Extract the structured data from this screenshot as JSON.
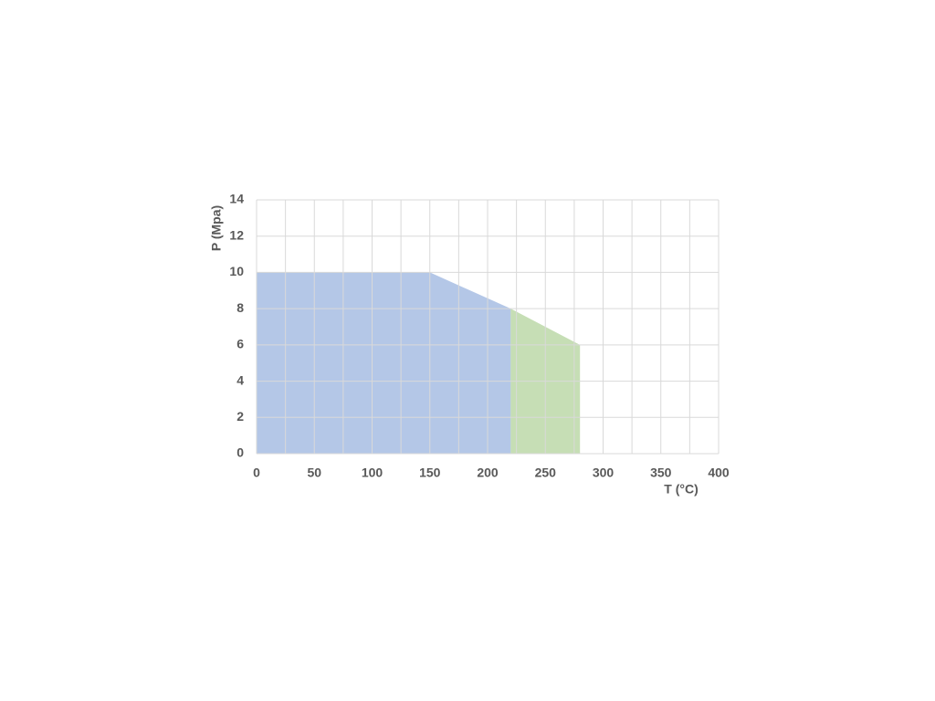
{
  "chart_data": {
    "type": "area",
    "x_label": "T (°C)",
    "y_label": "P (Mpa)",
    "series": [
      {
        "color": "#4472c4",
        "x": [
          0,
          150,
          220
        ],
        "values": [
          10,
          10,
          8
        ]
      },
      {
        "color": "#70ad47",
        "x": [
          220,
          280
        ],
        "values": [
          8,
          6
        ]
      }
    ],
    "xlim": [
      0,
      400
    ],
    "xticks": [
      0,
      50,
      100,
      150,
      200,
      250,
      300,
      350,
      400
    ],
    "x_minor_ticks": [
      25,
      75,
      125,
      175,
      225,
      275,
      325,
      375
    ],
    "ylim": [
      0,
      14
    ],
    "yticks": [
      0,
      2,
      4,
      6,
      8,
      10,
      12,
      14
    ],
    "grid": true
  }
}
